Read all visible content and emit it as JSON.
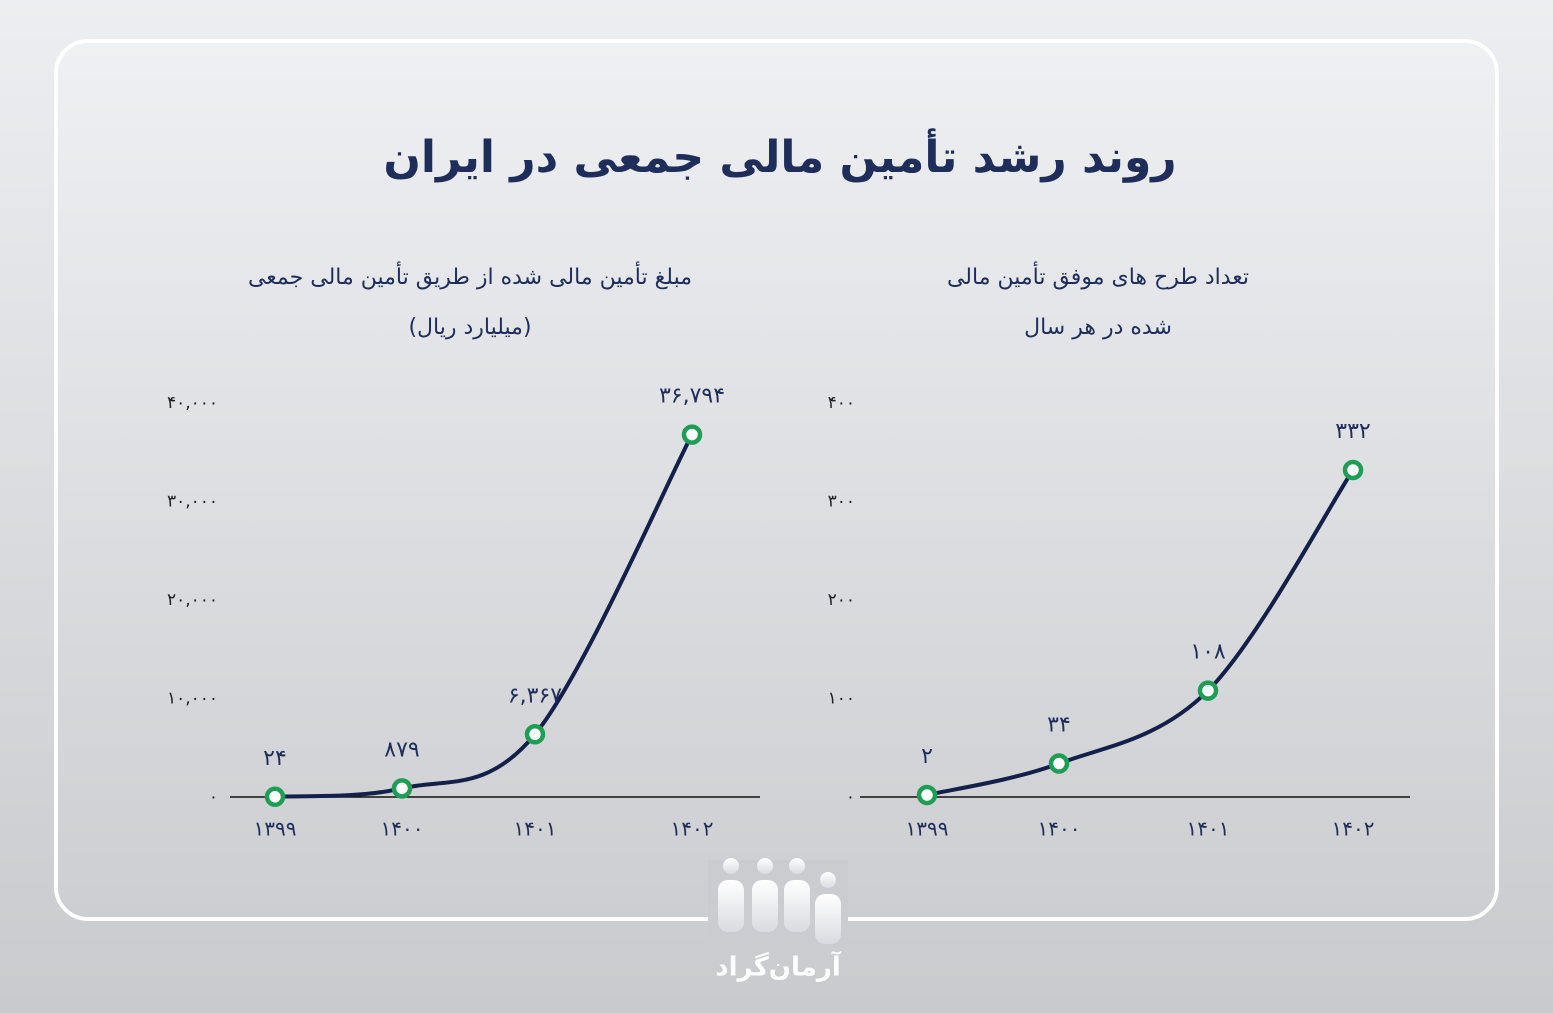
{
  "title": "روند رشد تأمین مالی جمعی در ایران",
  "logo": "آرمان‌گراد",
  "chart_data": [
    {
      "type": "line",
      "title": [
        "مبلغ تأمین مالی شده از طریق تأمین مالی جمعی",
        "(میلیارد ریال)"
      ],
      "categories": [
        "۱۳۹۹",
        "۱۴۰۰",
        "۱۴۰۱",
        "۱۴۰۲"
      ],
      "series": [
        {
          "color": "#13204a",
          "marker_color": "#1e9e55",
          "values": [
            24,
            879,
            6367,
            36794
          ],
          "value_labels": [
            "۲۴",
            "۸۷۹",
            "۶,۳۶۷",
            "۳۶,۷۹۴"
          ]
        }
      ],
      "ylim": [
        0,
        40000
      ],
      "yticks": [
        {
          "value": 0,
          "label": "۰"
        },
        {
          "value": 10000,
          "label": "۱۰,۰۰۰"
        },
        {
          "value": 20000,
          "label": "۲۰,۰۰۰"
        },
        {
          "value": 30000,
          "label": "۳۰,۰۰۰"
        },
        {
          "value": 40000,
          "label": "۴۰,۰۰۰"
        }
      ],
      "grid": false
    },
    {
      "type": "line",
      "title": [
        "تعداد طرح های موفق تأمین مالی",
        "شده در هر سال"
      ],
      "categories": [
        "۱۳۹۹",
        "۱۴۰۰",
        "۱۴۰۱",
        "۱۴۰۲"
      ],
      "series": [
        {
          "color": "#13204a",
          "marker_color": "#1e9e55",
          "values": [
            2,
            34,
            108,
            332
          ],
          "value_labels": [
            "۲",
            "۳۴",
            "۱۰۸",
            "۳۳۲"
          ]
        }
      ],
      "ylim": [
        0,
        400
      ],
      "yticks": [
        {
          "value": 0,
          "label": "۰"
        },
        {
          "value": 100,
          "label": "۱۰۰"
        },
        {
          "value": 200,
          "label": "۲۰۰"
        },
        {
          "value": 300,
          "label": "۳۰۰"
        },
        {
          "value": 400,
          "label": "۴۰۰"
        }
      ],
      "grid": false
    }
  ]
}
